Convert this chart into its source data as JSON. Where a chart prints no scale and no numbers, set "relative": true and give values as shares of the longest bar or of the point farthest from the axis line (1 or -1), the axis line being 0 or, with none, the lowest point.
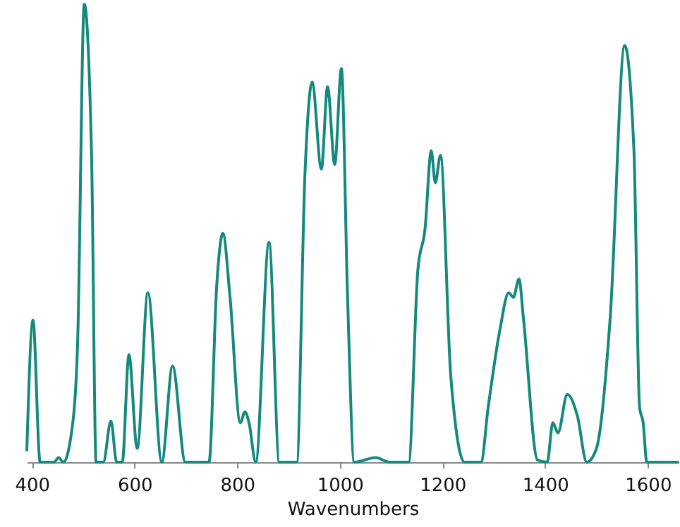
{
  "chart_data": {
    "type": "line",
    "xlabel": "Wavenumbers",
    "relative": true,
    "xlim": [
      390,
      1660
    ],
    "xticks": [
      400,
      600,
      800,
      1000,
      1200,
      1400,
      1600
    ],
    "grid": false,
    "marker": "none",
    "line_style": "solid",
    "x": [
      390,
      402,
      416,
      443,
      452,
      461,
      480,
      489,
      502,
      516,
      525,
      539,
      554,
      565,
      576,
      589,
      605,
      626,
      653,
      674,
      699,
      745,
      760,
      772,
      786,
      806,
      815,
      823,
      836,
      862,
      882,
      916,
      932,
      946,
      964,
      976,
      990,
      1003,
      1015,
      1028,
      1070,
      1097,
      1134,
      1152,
      1166,
      1178,
      1186,
      1196,
      1216,
      1243,
      1275,
      1289,
      1312,
      1329,
      1338,
      1349,
      1358,
      1385,
      1404,
      1415,
      1425,
      1443,
      1463,
      1481,
      1500,
      1527,
      1555,
      1573,
      1584,
      1591,
      1598,
      1660
    ],
    "series": [
      {
        "color": "#14897e",
        "values": [
          0.024,
          0.31,
          0,
          0,
          0.01,
          0,
          0.09,
          0.26,
          1,
          0.68,
          0,
          0,
          0.09,
          0,
          0,
          0.235,
          0.03,
          0.37,
          0,
          0.21,
          0,
          0,
          0.385,
          0.5,
          0.36,
          0.086,
          0.11,
          0.086,
          0,
          0.48,
          0,
          0,
          0.63,
          0.83,
          0.64,
          0.82,
          0.65,
          0.86,
          0.36,
          0,
          0.01,
          0,
          0,
          0.42,
          0.51,
          0.68,
          0.61,
          0.67,
          0.19,
          0,
          0,
          0.12,
          0.29,
          0.37,
          0.36,
          0.4,
          0.31,
          0.005,
          0,
          0.086,
          0.064,
          0.148,
          0.1,
          0,
          0.03,
          0.32,
          0.91,
          0.68,
          0.12,
          0.086,
          0,
          0
        ]
      }
    ]
  }
}
